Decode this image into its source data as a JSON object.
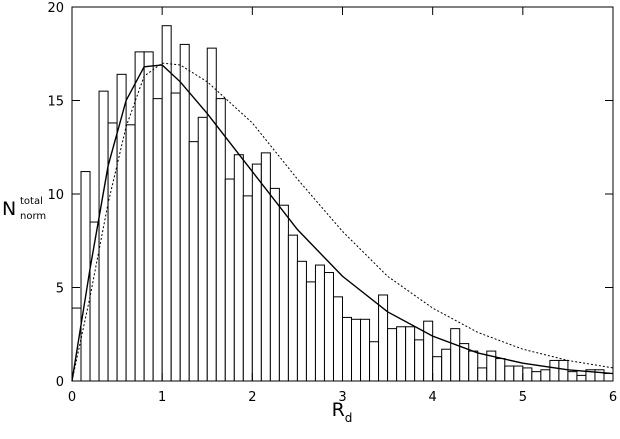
{
  "chart_data": {
    "type": "histogram",
    "x_label": {
      "main": "R",
      "sub": "d"
    },
    "y_label": {
      "main": "N",
      "sup": "total",
      "sub": "norm"
    },
    "bins": [
      0,
      0.1,
      0.2,
      0.3,
      0.4,
      0.5,
      0.6,
      0.7,
      0.8,
      0.9,
      1.0,
      1.1,
      1.2,
      1.3,
      1.4,
      1.5,
      1.6,
      1.7,
      1.8,
      1.9,
      2.0,
      2.1,
      2.2,
      2.3,
      2.4,
      2.5,
      2.6,
      2.7,
      2.8,
      2.9,
      3.0,
      3.1,
      3.2,
      3.3,
      3.4,
      3.5,
      3.6,
      3.7,
      3.8,
      3.9,
      4.0,
      4.1,
      4.2,
      4.3,
      4.4,
      4.5,
      4.6,
      4.7,
      4.8,
      4.9,
      5.0,
      5.1,
      5.2,
      5.3,
      5.4,
      5.5,
      5.6,
      5.7,
      5.8,
      5.9,
      6.0
    ],
    "counts": [
      3.9,
      11.2,
      8.5,
      15.5,
      13.8,
      16.4,
      13.7,
      17.6,
      17.6,
      15.1,
      19.0,
      15.4,
      18.0,
      12.8,
      14.1,
      17.8,
      15.1,
      10.8,
      12.1,
      9.9,
      11.6,
      12.2,
      10.3,
      9.4,
      7.8,
      6.4,
      5.3,
      6.2,
      5.8,
      4.5,
      3.4,
      3.3,
      3.3,
      2.1,
      4.6,
      2.8,
      2.9,
      2.9,
      2.2,
      3.2,
      1.3,
      1.7,
      2.8,
      2.0,
      1.6,
      0.7,
      1.6,
      1.2,
      0.8,
      0.8,
      0.7,
      0.5,
      0.6,
      1.1,
      1.1,
      0.5,
      0.3,
      0.6,
      0.6,
      0.4
    ],
    "bar_color": "#000000",
    "curves": [
      {
        "color": "#000000",
        "dashed": false,
        "x": [
          0,
          0.2,
          0.4,
          0.6,
          0.8,
          1.0,
          1.2,
          1.5,
          2,
          2.5,
          3,
          3.5,
          4,
          4.5,
          5,
          5.5,
          6
        ],
        "values": [
          0,
          6,
          11.5,
          15,
          16.8,
          16.9,
          16,
          14.3,
          11.2,
          8.1,
          5.6,
          3.7,
          2.4,
          1.5,
          0.95,
          0.6,
          0.4
        ]
      },
      {
        "color": "#000000",
        "dashed": true,
        "x": [
          0,
          0.2,
          0.4,
          0.6,
          0.8,
          1.0,
          1.2,
          1.5,
          2,
          2.5,
          3,
          3.5,
          4,
          4.5,
          5,
          5.5,
          6
        ],
        "values": [
          0,
          4.5,
          9.5,
          13.6,
          16.3,
          17,
          16.9,
          16,
          13.8,
          10.8,
          8.0,
          5.6,
          3.9,
          2.6,
          1.7,
          1.1,
          0.7
        ]
      }
    ],
    "xlim": [
      0,
      6
    ],
    "xticks": [
      0,
      1,
      2,
      3,
      4,
      5,
      6
    ],
    "ylim": [
      0,
      20
    ],
    "yticks": [
      0,
      5,
      10,
      15,
      20
    ]
  }
}
